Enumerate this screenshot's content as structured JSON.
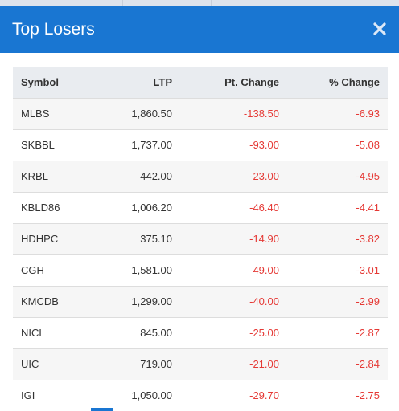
{
  "dialog": {
    "title": "Top Losers",
    "close_icon": "close-icon"
  },
  "colors": {
    "header": "#1976d2",
    "negative": "#e53935",
    "text": "#333333"
  },
  "table": {
    "headers": {
      "symbol": "Symbol",
      "ltp": "LTP",
      "pt_change": "Pt. Change",
      "pct_change": "% Change"
    },
    "rows": [
      {
        "symbol": "MLBS",
        "ltp": "1,860.50",
        "pt_change": "-138.50",
        "pct_change": "-6.93"
      },
      {
        "symbol": "SKBBL",
        "ltp": "1,737.00",
        "pt_change": "-93.00",
        "pct_change": "-5.08"
      },
      {
        "symbol": "KRBL",
        "ltp": "442.00",
        "pt_change": "-23.00",
        "pct_change": "-4.95"
      },
      {
        "symbol": "KBLD86",
        "ltp": "1,006.20",
        "pt_change": "-46.40",
        "pct_change": "-4.41"
      },
      {
        "symbol": "HDHPC",
        "ltp": "375.10",
        "pt_change": "-14.90",
        "pct_change": "-3.82"
      },
      {
        "symbol": "CGH",
        "ltp": "1,581.00",
        "pt_change": "-49.00",
        "pct_change": "-3.01"
      },
      {
        "symbol": "KMCDB",
        "ltp": "1,299.00",
        "pt_change": "-40.00",
        "pct_change": "-2.99"
      },
      {
        "symbol": "NICL",
        "ltp": "845.00",
        "pt_change": "-25.00",
        "pct_change": "-2.87"
      },
      {
        "symbol": "UIC",
        "ltp": "719.00",
        "pt_change": "-21.00",
        "pct_change": "-2.84"
      },
      {
        "symbol": "IGI",
        "ltp": "1,050.00",
        "pt_change": "-29.70",
        "pct_change": "-2.75"
      }
    ]
  }
}
